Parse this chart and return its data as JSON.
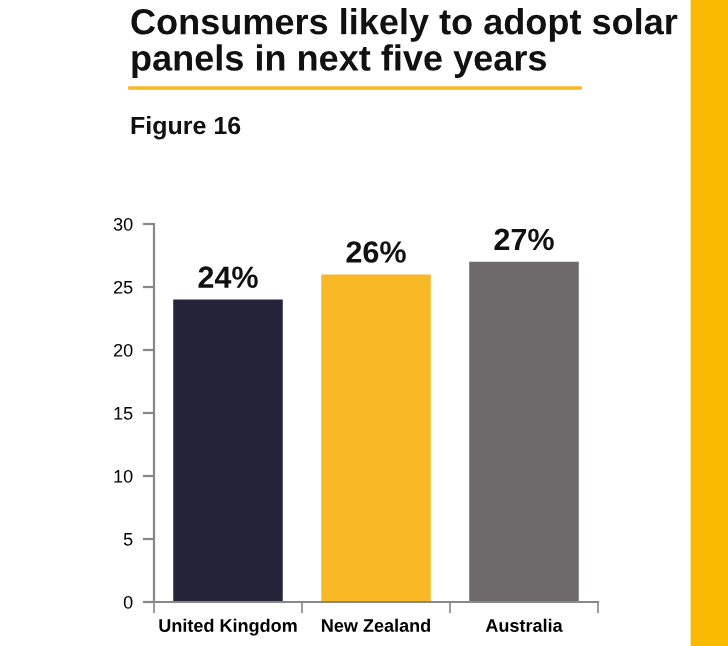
{
  "chart_data": {
    "type": "bar",
    "title": "Consumers likely to adopt solar panels in next five years",
    "subtitle": "Figure 16",
    "categories": [
      "United Kingdom",
      "New Zealand",
      "Australia"
    ],
    "values": [
      24,
      26,
      27
    ],
    "colors": [
      "#25233a",
      "#f8b725",
      "#6e6a6b"
    ],
    "value_labels": [
      "24%",
      "26%",
      "27%"
    ],
    "ylim": [
      0,
      30
    ],
    "yticks": [
      0,
      5,
      10,
      15,
      20,
      25,
      30
    ],
    "grid": false,
    "legend": false
  }
}
